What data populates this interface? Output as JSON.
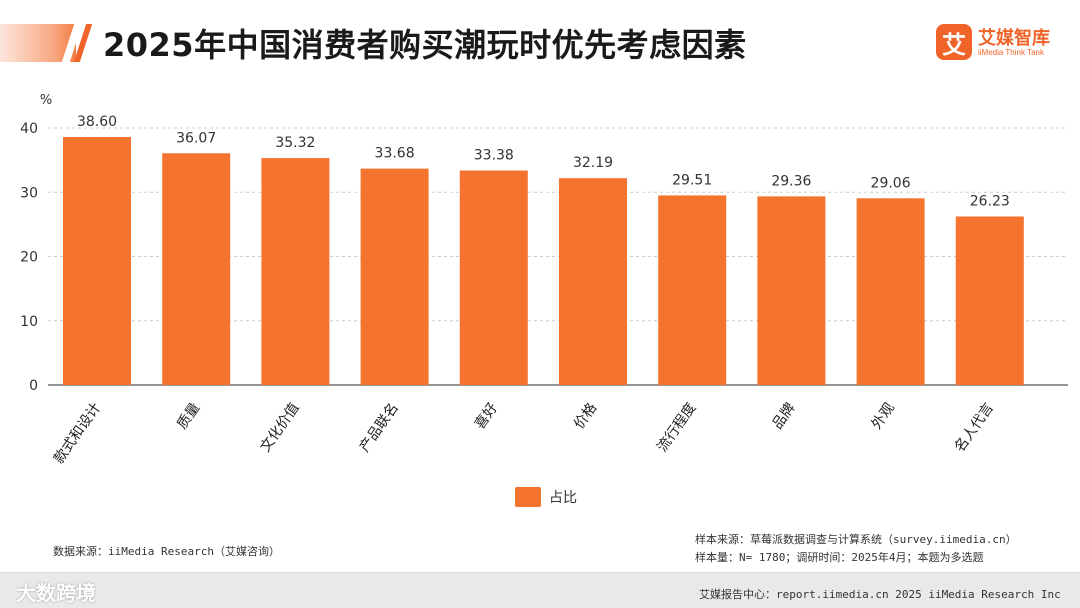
{
  "header": {
    "title": "2025年中国消费者购买潮玩时优先考虑因素",
    "logo_mark": "艾",
    "logo_name": "艾媒智库",
    "logo_sub": "iiMedia Think Tank"
  },
  "chart_data": {
    "type": "bar",
    "title": "",
    "ylabel": "%",
    "xlabel": "",
    "ylim": [
      0,
      40
    ],
    "yticks": [
      "0",
      "10",
      "20",
      "30",
      "40"
    ],
    "categories": [
      "款式和设计",
      "质量",
      "文化价值",
      "产品联名",
      "喜好",
      "价格",
      "流行程度",
      "品牌",
      "外观",
      "名人代言"
    ],
    "series": [
      {
        "name": "占比",
        "values": [
          38.6,
          36.07,
          35.32,
          33.68,
          33.38,
          32.19,
          29.51,
          29.36,
          29.06,
          26.23
        ]
      }
    ],
    "value_labels": [
      "38.60",
      "36.07",
      "35.32",
      "33.68",
      "33.38",
      "32.19",
      "29.51",
      "29.36",
      "29.06",
      "26.23"
    ],
    "grid": true,
    "legend": "bottom-center",
    "colors": {
      "bar": "#f4742f",
      "grid": "#cccccc",
      "axis": "#555555"
    }
  },
  "legend": {
    "label": "占比"
  },
  "notes": {
    "source_left": "数据来源：iiMedia Research（艾媒咨询）",
    "sample_source": "样本来源：草莓派数据调查与计算系统（survey.iimedia.cn）",
    "sample_size": "样本量：N= 1780；调研时间：2025年4月；本题为多选题"
  },
  "footer": {
    "watermark": "大数跨境",
    "text": "艾媒报告中心：report.iimedia.cn  2025 iiMedia Research Inc"
  },
  "colors": {
    "accent": "#f0642a",
    "bar": "#f4742f"
  }
}
